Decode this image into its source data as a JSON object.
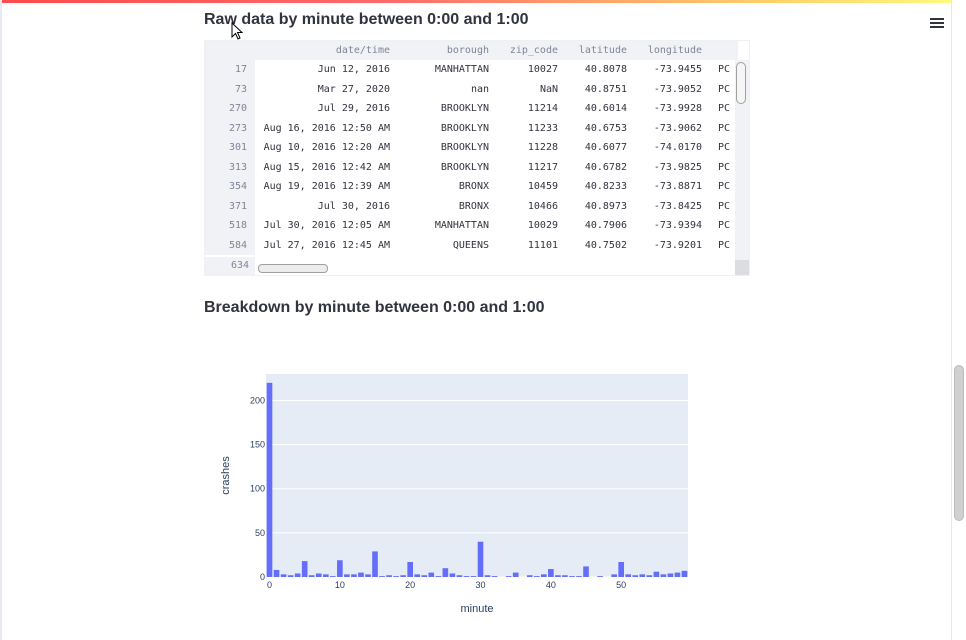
{
  "section1": {
    "title": "Raw data by minute between 0:00 and 1:00"
  },
  "section2": {
    "title": "Breakdown by minute between 0:00 and 1:00"
  },
  "table": {
    "columns": [
      "",
      "date/time",
      "borough",
      "zip_code",
      "latitude",
      "longitude",
      ""
    ],
    "rows": [
      [
        "17",
        "Jun 12, 2016",
        "MANHATTAN",
        "10027",
        "40.8078",
        "-73.9455",
        "PC"
      ],
      [
        "73",
        "Mar 27, 2020",
        "nan",
        "NaN",
        "40.8751",
        "-73.9052",
        "PC"
      ],
      [
        "270",
        "Jul 29, 2016",
        "BROOKLYN",
        "11214",
        "40.6014",
        "-73.9928",
        "PC"
      ],
      [
        "273",
        "Aug 16, 2016 12:50 AM",
        "BROOKLYN",
        "11233",
        "40.6753",
        "-73.9062",
        "PC"
      ],
      [
        "301",
        "Aug 10, 2016 12:20 AM",
        "BROOKLYN",
        "11228",
        "40.6077",
        "-74.0170",
        "PC"
      ],
      [
        "313",
        "Aug 15, 2016 12:42 AM",
        "BROOKLYN",
        "11217",
        "40.6782",
        "-73.9825",
        "PC"
      ],
      [
        "354",
        "Aug 19, 2016 12:39 AM",
        "BRONX",
        "10459",
        "40.8233",
        "-73.8871",
        "PC"
      ],
      [
        "371",
        "Jul 30, 2016",
        "BRONX",
        "10466",
        "40.8973",
        "-73.8425",
        "PC"
      ],
      [
        "518",
        "Jul 30, 2016 12:05 AM",
        "MANHATTAN",
        "10029",
        "40.7906",
        "-73.9394",
        "PC"
      ],
      [
        "584",
        "Jul 27, 2016 12:45 AM",
        "QUEENS",
        "11101",
        "40.7502",
        "-73.9201",
        "PC"
      ]
    ],
    "last_index": "634"
  },
  "chart_data": {
    "type": "bar",
    "xlabel": "minute",
    "ylabel": "crashes",
    "xlim": [
      -0.5,
      59.5
    ],
    "ylim": [
      0,
      230
    ],
    "xticks": [
      0,
      10,
      20,
      30,
      40,
      50
    ],
    "yticks": [
      0,
      50,
      100,
      150,
      200
    ],
    "bar_color": "#636efa",
    "plot_bg": "#e5ecf6",
    "x": [
      0,
      1,
      2,
      3,
      4,
      5,
      6,
      7,
      8,
      9,
      10,
      11,
      12,
      13,
      14,
      15,
      16,
      17,
      18,
      19,
      20,
      21,
      22,
      23,
      24,
      25,
      26,
      27,
      28,
      29,
      30,
      31,
      32,
      33,
      34,
      35,
      36,
      37,
      38,
      39,
      40,
      41,
      42,
      43,
      44,
      45,
      46,
      47,
      48,
      49,
      50,
      51,
      52,
      53,
      54,
      55,
      56,
      57,
      58,
      59
    ],
    "values": [
      220,
      8,
      3,
      2,
      4,
      18,
      2,
      4,
      3,
      1,
      19,
      3,
      3,
      5,
      3,
      29,
      1,
      2,
      1,
      2,
      17,
      3,
      2,
      5,
      1,
      10,
      4,
      2,
      1,
      1,
      40,
      2,
      1,
      0,
      1,
      5,
      0,
      2,
      1,
      3,
      9,
      2,
      2,
      1,
      1,
      12,
      0,
      1,
      0,
      3,
      17,
      3,
      2,
      3,
      2,
      6,
      3,
      4,
      5,
      7
    ]
  }
}
